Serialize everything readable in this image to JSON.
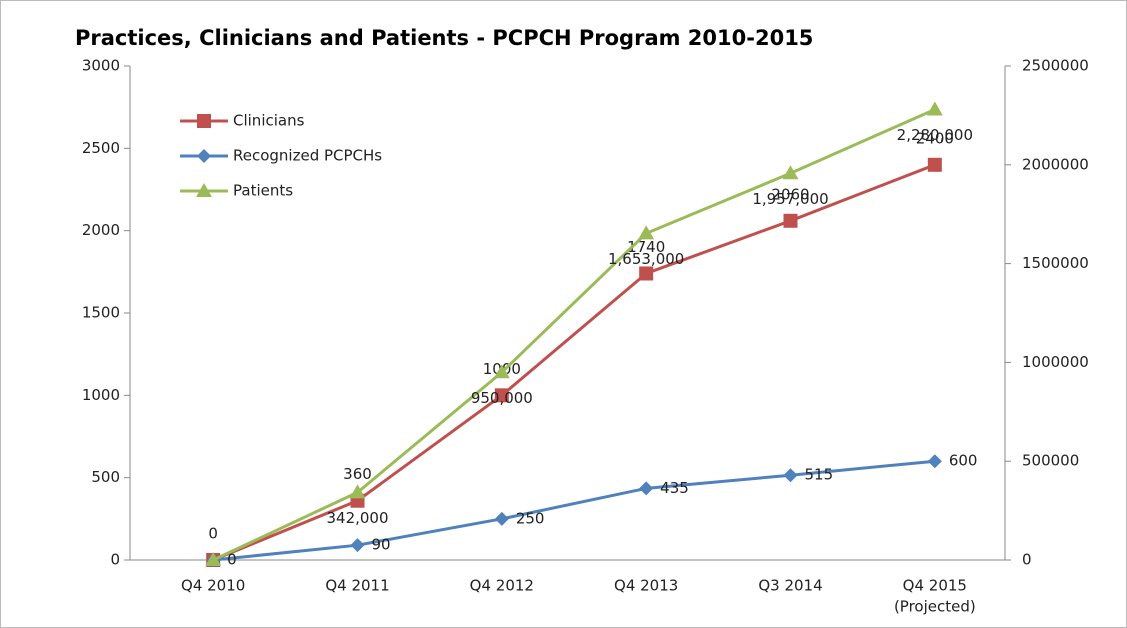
{
  "chart_data": {
    "type": "line",
    "title": "Practices, Clinicians and Patients - PCPCH Program 2010-2015",
    "categories": [
      "Q4 2010",
      "Q4 2011",
      "Q4 2012",
      "Q4 2013",
      "Q3 2014",
      [
        "Q4 2015",
        "(Projected)"
      ]
    ],
    "series": [
      {
        "name": "Clinicians",
        "color": "#c0504d",
        "marker": "square",
        "values": [
          0,
          360,
          1000,
          1740,
          2060,
          2400
        ]
      },
      {
        "name": "Recognized PCPCHs",
        "color": "#4f81bd",
        "marker": "diamond",
        "values": [
          0,
          90,
          250,
          435,
          515,
          600
        ]
      },
      {
        "name": "Patients",
        "color": "#9bbb59",
        "marker": "triangle",
        "axis": "y2",
        "values": [
          0,
          342000,
          950000,
          1653000,
          1957000,
          2280000
        ],
        "value_labels": [
          null,
          "342,000",
          "950,000",
          "1,653,000",
          "1,957,000",
          "2,280,000"
        ]
      }
    ],
    "ylim": [
      0,
      3000
    ],
    "yticks": [
      0,
      500,
      1000,
      1500,
      2000,
      2500,
      3000
    ],
    "y2lim": [
      0,
      2500000
    ],
    "y2ticks": [
      0,
      500000,
      1000000,
      1500000,
      2000000,
      2500000
    ],
    "legend": "upper left"
  }
}
